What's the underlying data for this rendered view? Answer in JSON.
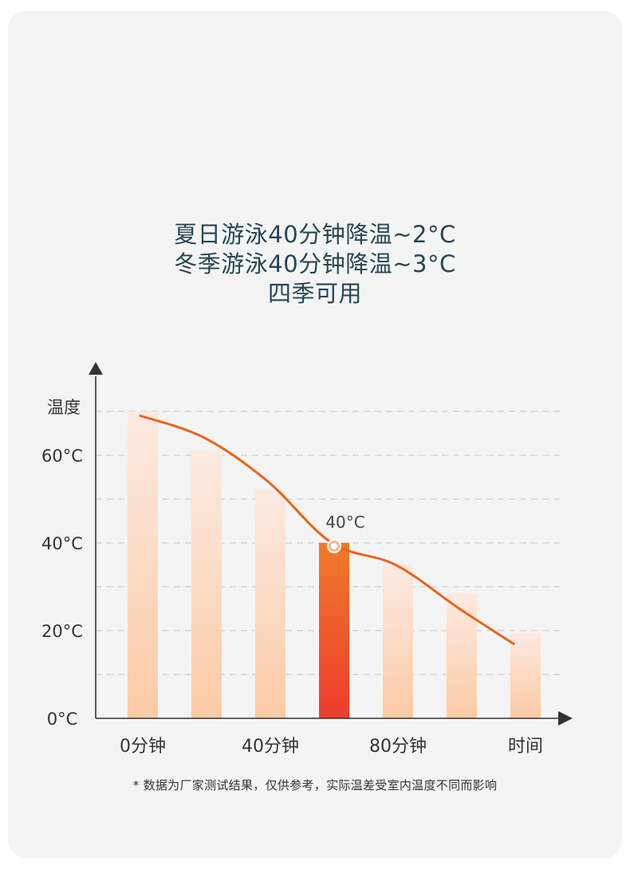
{
  "headline": {
    "line1": "夏日游泳40分钟降温~2°C",
    "line2": "冬季游泳40分钟降温~3°C",
    "line3": "四季可用"
  },
  "chart_data": {
    "type": "bar",
    "ylabel": "温度",
    "xlabel": "时间",
    "ylim": [
      0,
      70
    ],
    "yticks": [
      {
        "value": 0,
        "label": "0°C"
      },
      {
        "value": 20,
        "label": "20°C"
      },
      {
        "value": 40,
        "label": "40°C"
      },
      {
        "value": 60,
        "label": "60°C"
      }
    ],
    "xticks": [
      {
        "index": 0,
        "label": "0分钟"
      },
      {
        "index": 2,
        "label": "40分钟"
      },
      {
        "index": 4,
        "label": "80分钟"
      }
    ],
    "values": [
      70,
      61,
      52,
      40,
      35,
      28.5,
      19.5
    ],
    "highlight_index": 3,
    "highlight_label": "40°C",
    "curve": [
      69,
      64,
      54,
      40,
      35,
      25,
      17
    ],
    "grid": "dashed",
    "colors": {
      "bar": "#fcd2b2",
      "highlight_top": "#ee7a2a",
      "highlight_bottom": "#ee3a2c",
      "curve": "#e8651b",
      "axis": "#333333",
      "grid": "#c4c4c4"
    }
  },
  "footnote": "* 数据为厂家测试结果，仅供参考，实际温差受室内温度不同而影响"
}
